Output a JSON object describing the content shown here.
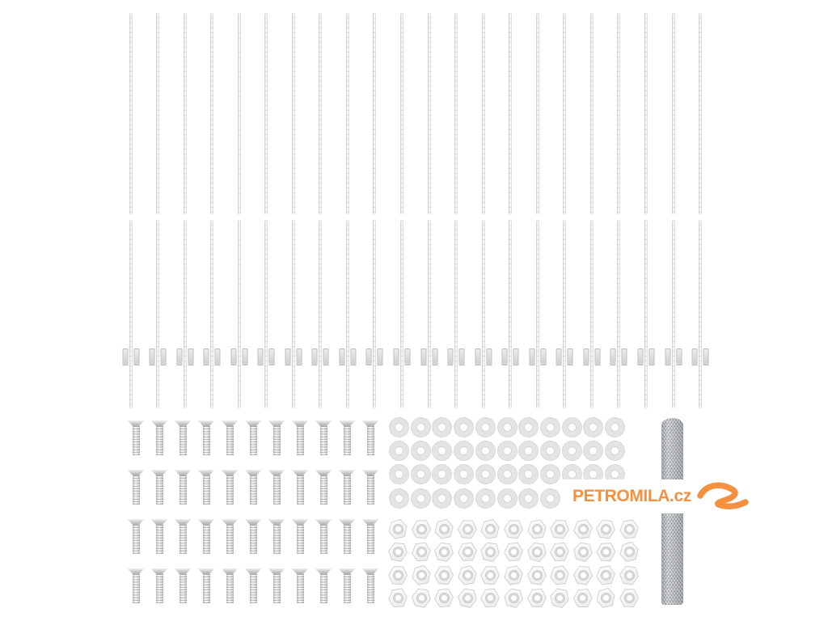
{
  "image": {
    "type": "product-photo",
    "description": "Fence mounting hardware kit laid out on a white background",
    "background_color": "#ffffff"
  },
  "watermark": {
    "text": "PETROMILA.cz",
    "color": "#f5913e",
    "icon": "brush-swoosh-icon"
  },
  "hardware": {
    "plain_rods_row": {
      "description": "thin metal rods, top row",
      "count": 22
    },
    "clipped_rods_row": {
      "description": "thin metal rods with mounting clips, middle row",
      "count": 22
    },
    "screws_grid": {
      "description": "countersunk screws",
      "rows": 4,
      "cols": 11,
      "count": 44
    },
    "washers_grid": {
      "description": "flat washers",
      "rows": 4,
      "cols": 11,
      "count": 44
    },
    "nuts_grid": {
      "description": "hex nuts",
      "rows": 4,
      "cols": 11,
      "count": 44
    },
    "mesh_roll": {
      "description": "rolled wire mesh",
      "count": 1
    }
  },
  "colors": {
    "metal_light": "#ededed",
    "metal_shadow": "#b3b3b3",
    "mesh_gray": "#b4b9bb",
    "watermark_orange": "#f5913e"
  }
}
